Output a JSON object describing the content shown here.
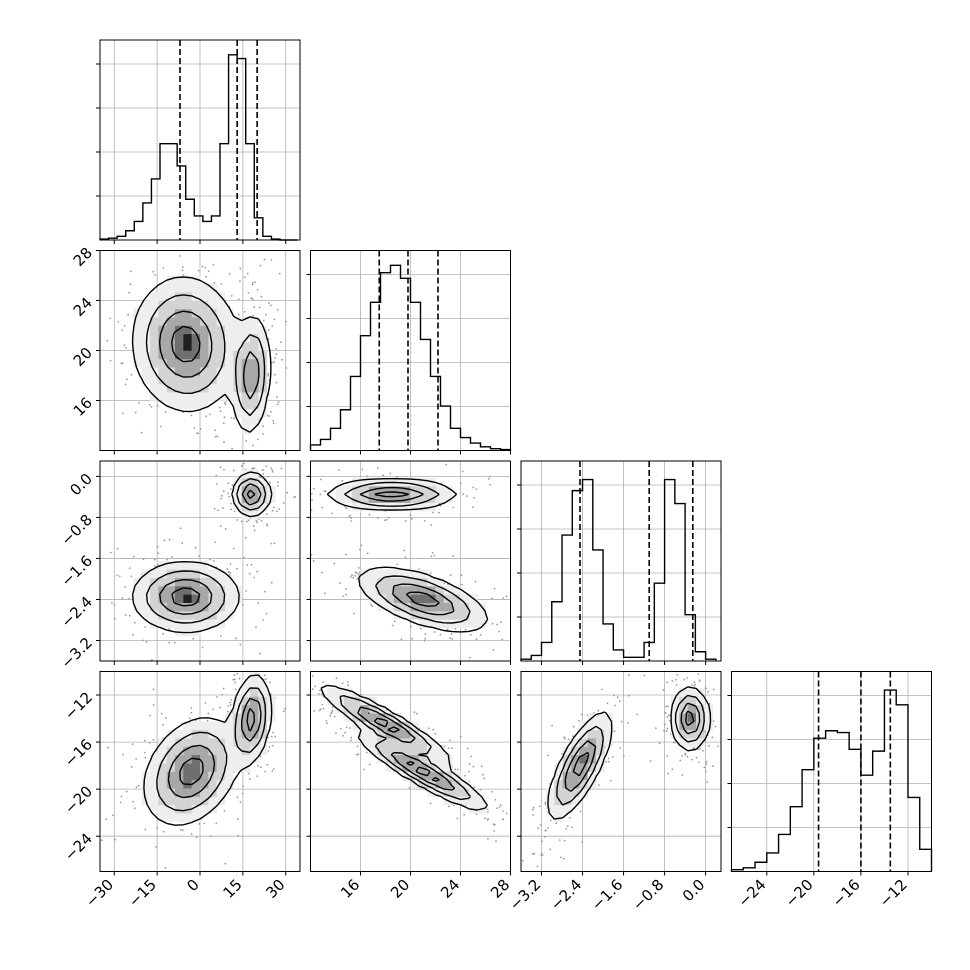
{
  "chart_data": {
    "type": "corner",
    "params": [
      {
        "index": 0,
        "range": [
          -35,
          35
        ],
        "ticks": [
          -30,
          -15,
          0,
          15,
          30
        ],
        "tick_labels": [
          "−30",
          "−15",
          "0",
          "15",
          "30"
        ],
        "quantiles": [
          -7,
          13,
          20
        ],
        "histogram": {
          "edges": [
            -35,
            -32,
            -29,
            -26,
            -23,
            -20,
            -17,
            -14,
            -11,
            -8,
            -5,
            -2,
            1,
            4,
            7,
            10,
            13,
            16,
            19,
            22,
            25,
            28,
            31,
            34
          ],
          "counts": [
            0.005,
            0.01,
            0.02,
            0.05,
            0.1,
            0.2,
            0.33,
            0.52,
            0.52,
            0.4,
            0.22,
            0.13,
            0.1,
            0.13,
            0.52,
            1.0,
            0.98,
            0.52,
            0.12,
            0.02,
            0.005,
            0.0,
            0.0
          ]
        }
      },
      {
        "index": 1,
        "range": [
          12,
          28
        ],
        "ticks": [
          16,
          20,
          24,
          28
        ],
        "tick_labels": [
          "16",
          "20",
          "24",
          "28"
        ],
        "quantiles": [
          17.5,
          19.8,
          22.2
        ],
        "histogram": {
          "edges": [
            12,
            12.8,
            13.6,
            14.4,
            15.2,
            16,
            16.8,
            17.6,
            18.4,
            19.2,
            20,
            20.8,
            21.6,
            22.4,
            23.2,
            24,
            24.8,
            25.6,
            26.4,
            27.2,
            28
          ],
          "counts": [
            0.03,
            0.06,
            0.12,
            0.22,
            0.4,
            0.62,
            0.8,
            0.96,
            1.0,
            0.93,
            0.8,
            0.6,
            0.4,
            0.24,
            0.12,
            0.07,
            0.04,
            0.02,
            0.01,
            0.005
          ]
        }
      },
      {
        "index": 2,
        "range": [
          -3.6,
          0.3
        ],
        "ticks": [
          -3.2,
          -2.4,
          -1.6,
          -0.8,
          0.0
        ],
        "tick_labels": [
          "−3.2",
          "−2.4",
          "−1.6",
          "−0.8",
          "0.0"
        ],
        "quantiles": [
          -2.45,
          -1.1,
          -0.25
        ],
        "histogram": {
          "edges": [
            -3.6,
            -3.4,
            -3.2,
            -3.0,
            -2.8,
            -2.6,
            -2.4,
            -2.2,
            -2.0,
            -1.8,
            -1.6,
            -1.4,
            -1.2,
            -1.0,
            -0.8,
            -0.6,
            -0.4,
            -0.2,
            0.0,
            0.2
          ],
          "counts": [
            0.01,
            0.03,
            0.1,
            0.32,
            0.68,
            0.92,
            0.98,
            0.6,
            0.2,
            0.06,
            0.02,
            0.02,
            0.1,
            0.42,
            0.98,
            0.85,
            0.25,
            0.05,
            0.01
          ]
        }
      },
      {
        "index": 3,
        "range": [
          -27,
          -10
        ],
        "ticks": [
          -24,
          -20,
          -16,
          -12
        ],
        "tick_labels": [
          "−24",
          "−20",
          "−16",
          "−12"
        ],
        "quantiles": [
          -19.6,
          -16.0,
          -13.5
        ],
        "histogram": {
          "edges": [
            -27,
            -26,
            -25,
            -24,
            -23,
            -22,
            -21,
            -20,
            -19,
            -18,
            -17,
            -16,
            -15,
            -14,
            -13,
            -12,
            -11,
            -10
          ],
          "counts": [
            0.01,
            0.02,
            0.05,
            0.1,
            0.2,
            0.35,
            0.55,
            0.72,
            0.76,
            0.75,
            0.66,
            0.52,
            0.65,
            0.98,
            0.9,
            0.4,
            0.12
          ]
        }
      }
    ],
    "pairs": [
      {
        "x": 0,
        "y": 1,
        "modes": [
          {
            "cx": -5,
            "cy": 20.5,
            "sx": 9,
            "sy": 2.6,
            "rho": -0.05,
            "w": 0.55
          },
          {
            "cx": 18,
            "cy": 18,
            "sx": 3.2,
            "sy": 2.3,
            "rho": 0.15,
            "w": 0.45
          }
        ]
      },
      {
        "x": 0,
        "y": 2,
        "modes": [
          {
            "cx": -5,
            "cy": -2.35,
            "sx": 9,
            "sy": 0.33,
            "rho": 0.0,
            "w": 0.5
          },
          {
            "cx": 18,
            "cy": -0.35,
            "sx": 3.2,
            "sy": 0.2,
            "rho": 0.0,
            "w": 0.5
          }
        ]
      },
      {
        "x": 0,
        "y": 3,
        "modes": [
          {
            "cx": -3,
            "cy": -18.5,
            "sx": 8,
            "sy": 2.2,
            "rho": 0.3,
            "w": 0.5
          },
          {
            "cx": 18,
            "cy": -14,
            "sx": 3.2,
            "sy": 1.8,
            "rho": 0.2,
            "w": 0.5
          }
        ]
      },
      {
        "x": 1,
        "y": 2,
        "modes": [
          {
            "cx": 18.5,
            "cy": -0.35,
            "sx": 2.5,
            "sy": 0.14,
            "rho": 0.0,
            "w": 0.5
          },
          {
            "cx": 21,
            "cy": -2.4,
            "sx": 2.5,
            "sy": 0.3,
            "rho": -0.6,
            "w": 0.5
          }
        ]
      },
      {
        "x": 1,
        "y": 3,
        "modes": [
          {
            "cx": 18,
            "cy": -14.5,
            "sx": 2.5,
            "sy": 1.6,
            "rho": -0.92,
            "w": 0.5
          },
          {
            "cx": 21,
            "cy": -18.5,
            "sx": 2.5,
            "sy": 1.6,
            "rho": -0.92,
            "w": 0.5
          }
        ]
      },
      {
        "x": 2,
        "y": 3,
        "modes": [
          {
            "cx": -2.45,
            "cy": -18,
            "sx": 0.3,
            "sy": 2.2,
            "rho": 0.75,
            "w": 0.5
          },
          {
            "cx": -0.3,
            "cy": -14,
            "sx": 0.18,
            "sy": 1.3,
            "rho": 0.0,
            "w": 0.5
          }
        ]
      }
    ],
    "grid": true,
    "legend": "none"
  }
}
